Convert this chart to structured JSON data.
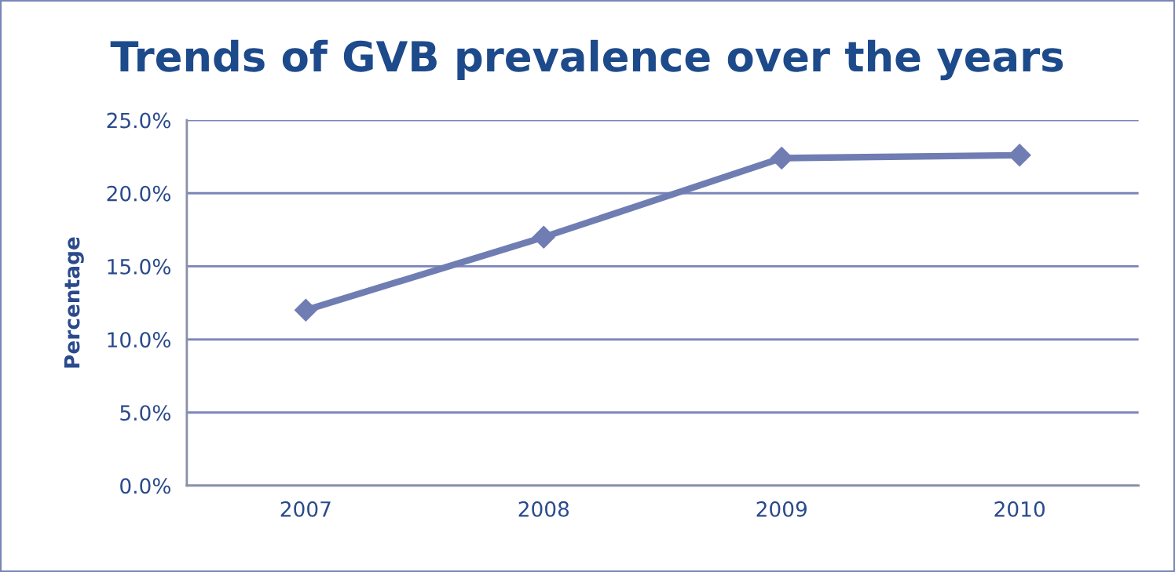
{
  "chart_data": {
    "type": "line",
    "title": "Trends of GVB prevalence over the years",
    "ylabel": "Percentage",
    "categories": [
      "2007",
      "2008",
      "2009",
      "2010"
    ],
    "series": [
      {
        "color": "#6f7db3",
        "values": [
          12.0,
          17.0,
          22.4,
          22.6
        ]
      }
    ],
    "ylim": [
      0,
      25
    ],
    "yticks": [
      {
        "value": 0,
        "label": "0.0%"
      },
      {
        "value": 5,
        "label": "5.0%"
      },
      {
        "value": 10,
        "label": "10.0%"
      },
      {
        "value": 15,
        "label": "15.0%"
      },
      {
        "value": 20,
        "label": "20.0%"
      },
      {
        "value": 25,
        "label": "25.0%"
      }
    ],
    "grid": "y",
    "marker": "diamond",
    "line_style": "solid"
  }
}
